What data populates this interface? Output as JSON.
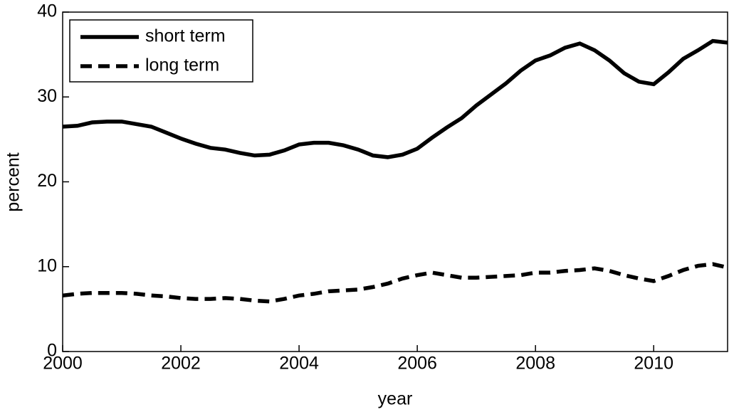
{
  "chart_data": {
    "type": "line",
    "x_label": "year",
    "y_label": "percent",
    "x": [
      2000,
      2000.25,
      2000.5,
      2000.75,
      2001,
      2001.25,
      2001.5,
      2001.75,
      2002,
      2002.25,
      2002.5,
      2002.75,
      2003,
      2003.25,
      2003.5,
      2003.75,
      2004,
      2004.25,
      2004.5,
      2004.75,
      2005,
      2005.25,
      2005.5,
      2005.75,
      2006,
      2006.25,
      2006.5,
      2006.75,
      2007,
      2007.25,
      2007.5,
      2007.75,
      2008,
      2008.25,
      2008.5,
      2008.75,
      2009,
      2009.25,
      2009.5,
      2009.75,
      2010,
      2010.25,
      2010.5,
      2010.75,
      2011,
      2011.25
    ],
    "series": [
      {
        "name": "short term",
        "color": "#000000",
        "dash": "solid",
        "values": [
          26.5,
          26.6,
          27.0,
          27.1,
          27.1,
          26.8,
          26.5,
          25.8,
          25.1,
          24.5,
          24.0,
          23.8,
          23.4,
          23.1,
          23.2,
          23.7,
          24.4,
          24.6,
          24.6,
          24.3,
          23.8,
          23.1,
          22.9,
          23.2,
          23.9,
          25.2,
          26.4,
          27.5,
          29.0,
          30.3,
          31.6,
          33.1,
          34.3,
          34.9,
          35.8,
          36.3,
          35.5,
          34.3,
          32.8,
          31.8,
          31.5,
          32.9,
          34.5,
          35.5,
          36.6,
          36.4
        ]
      },
      {
        "name": "long term",
        "color": "#000000",
        "dash": "dashed",
        "values": [
          6.6,
          6.8,
          6.9,
          6.9,
          6.9,
          6.8,
          6.6,
          6.5,
          6.3,
          6.2,
          6.2,
          6.3,
          6.2,
          6.0,
          5.9,
          6.2,
          6.6,
          6.8,
          7.1,
          7.2,
          7.3,
          7.6,
          8.0,
          8.6,
          9.0,
          9.3,
          9.0,
          8.7,
          8.7,
          8.8,
          8.9,
          9.0,
          9.3,
          9.3,
          9.5,
          9.6,
          9.8,
          9.5,
          9.0,
          8.6,
          8.3,
          8.9,
          9.6,
          10.1,
          10.3,
          9.9
        ]
      }
    ],
    "xlim": [
      2000,
      2011.25
    ],
    "xticks": [
      2000,
      2002,
      2004,
      2006,
      2008,
      2010
    ],
    "ylim": [
      0,
      40
    ],
    "yticks": [
      0,
      10,
      20,
      30,
      40
    ],
    "grid": false,
    "legend": "upper left"
  }
}
